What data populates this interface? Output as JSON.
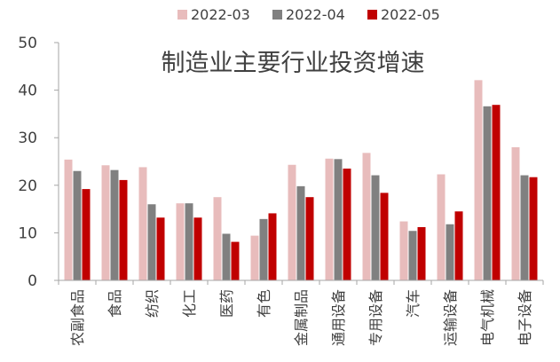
{
  "chart_data": {
    "type": "bar",
    "title": "制造业主要行业投资增速",
    "categories": [
      "农副食品",
      "食品",
      "纺织",
      "化工",
      "医药",
      "有色",
      "金属制品",
      "通用设备",
      "专用设备",
      "汽车",
      "运输设备",
      "电气机械",
      "电子设备"
    ],
    "series": [
      {
        "name": "2022-03",
        "values": [
          25.4,
          24.2,
          23.8,
          16.2,
          17.5,
          9.4,
          24.3,
          25.6,
          26.8,
          12.4,
          22.3,
          42.1,
          28.0
        ]
      },
      {
        "name": "2022-04",
        "values": [
          23.0,
          23.2,
          16.0,
          16.2,
          9.8,
          12.9,
          19.8,
          25.5,
          22.1,
          10.4,
          11.8,
          36.6,
          22.1
        ]
      },
      {
        "name": "2022-05",
        "values": [
          19.2,
          21.1,
          13.2,
          13.2,
          8.1,
          14.1,
          17.5,
          23.5,
          18.4,
          11.2,
          14.5,
          36.9,
          21.7
        ]
      }
    ],
    "ylim": [
      0,
      50
    ],
    "yticks": [
      0,
      10,
      20,
      30,
      40,
      50
    ],
    "legend_position": "top",
    "colors": [
      "#e8bcbc",
      "#808080",
      "#c00000"
    ],
    "axis_color": "#a6a6a6",
    "text_color": "#404040"
  }
}
